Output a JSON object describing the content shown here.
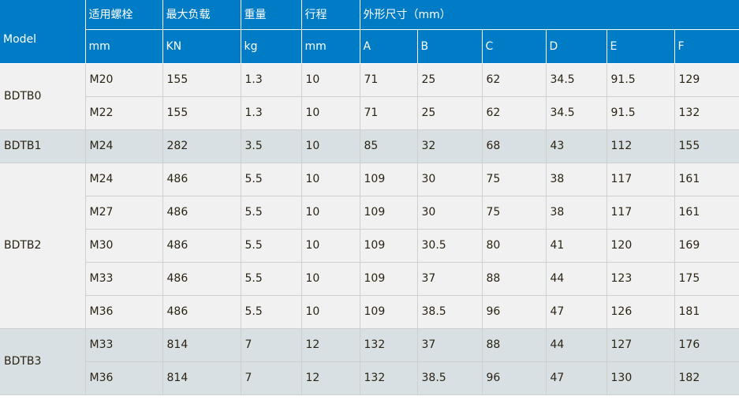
{
  "header": {
    "model": "Model",
    "columns": [
      {
        "name": "适用螺栓",
        "unit": "mm"
      },
      {
        "name": "最大负载",
        "unit": "KN"
      },
      {
        "name": "重量",
        "unit": "kg"
      },
      {
        "name": "行程",
        "unit": "mm"
      }
    ],
    "dims_title": "外形尺寸（mm）",
    "dims": [
      "A",
      "B",
      "C",
      "D",
      "E",
      "F"
    ]
  },
  "colors": {
    "header_bg": "#007cc7",
    "row_light": "#f1f1f1",
    "row_shaded": "#d9e0e3"
  },
  "groups": [
    {
      "model": "BDTB0",
      "rows": [
        [
          "M20",
          "155",
          "1.3",
          "10",
          "71",
          "25",
          "62",
          "34.5",
          "91.5",
          "129"
        ],
        [
          "M22",
          "155",
          "1.3",
          "10",
          "71",
          "25",
          "62",
          "34.5",
          "91.5",
          "132"
        ]
      ]
    },
    {
      "model": "BDTB1",
      "rows": [
        [
          "M24",
          "282",
          "3.5",
          "10",
          "85",
          "32",
          "68",
          "43",
          "112",
          "155"
        ]
      ]
    },
    {
      "model": "BDTB2",
      "rows": [
        [
          "M24",
          "486",
          "5.5",
          "10",
          "109",
          "30",
          "75",
          "38",
          "117",
          "161"
        ],
        [
          "M27",
          "486",
          "5.5",
          "10",
          "109",
          "30",
          "75",
          "38",
          "117",
          "161"
        ],
        [
          "M30",
          "486",
          "5.5",
          "10",
          "109",
          "30.5",
          "80",
          "41",
          "120",
          "169"
        ],
        [
          "M33",
          "486",
          "5.5",
          "10",
          "109",
          "37",
          "88",
          "44",
          "123",
          "175"
        ],
        [
          "M36",
          "486",
          "5.5",
          "10",
          "109",
          "38.5",
          "96",
          "47",
          "126",
          "181"
        ]
      ]
    },
    {
      "model": "BDTB3",
      "rows": [
        [
          "M33",
          "814",
          "7",
          "12",
          "132",
          "37",
          "88",
          "44",
          "127",
          "176"
        ],
        [
          "M36",
          "814",
          "7",
          "12",
          "132",
          "38.5",
          "96",
          "47",
          "130",
          "182"
        ]
      ]
    }
  ]
}
